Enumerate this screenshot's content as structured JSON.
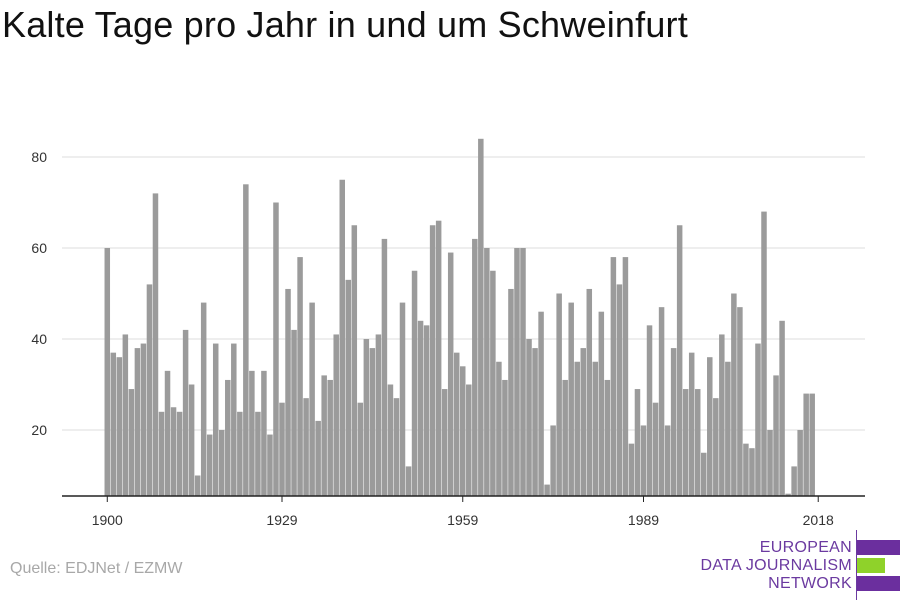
{
  "title": "Kalte Tage pro Jahr in und um Schweinfurt",
  "source": "Quelle: EDJNet / EZMW",
  "logo": {
    "lines": [
      "EUROPEAN",
      "DATA JOURNALISM",
      "NETWORK"
    ],
    "colors": {
      "purple": "#6b2f9e",
      "green": "#8fd22a"
    }
  },
  "chart_data": {
    "type": "bar",
    "title": "Kalte Tage pro Jahr in und um Schweinfurt",
    "xlabel": "",
    "ylabel": "",
    "x_start": 1899,
    "x_end": 2020,
    "xticks": [
      1900,
      1929,
      1959,
      1989,
      2018
    ],
    "yticks": [
      20,
      40,
      60,
      80
    ],
    "ylim": [
      5,
      88
    ],
    "grid": true,
    "bar_color": "#9b9b9b",
    "values": [
      5,
      60,
      37,
      36,
      41,
      29,
      38,
      39,
      52,
      72,
      24,
      33,
      25,
      24,
      42,
      30,
      10,
      48,
      19,
      39,
      20,
      31,
      39,
      24,
      74,
      33,
      24,
      33,
      19,
      70,
      26,
      51,
      42,
      58,
      27,
      48,
      22,
      32,
      31,
      41,
      75,
      53,
      65,
      26,
      40,
      38,
      41,
      62,
      30,
      27,
      48,
      12,
      55,
      44,
      43,
      65,
      66,
      29,
      59,
      37,
      34,
      30,
      62,
      84,
      60,
      55,
      35,
      31,
      51,
      60,
      60,
      40,
      38,
      46,
      8,
      21,
      50,
      31,
      48,
      35,
      38,
      51,
      35,
      46,
      31,
      58,
      52,
      58,
      17,
      29,
      21,
      43,
      26,
      47,
      21,
      38,
      65,
      29,
      37,
      29,
      15,
      36,
      27,
      41,
      35,
      50,
      47,
      17,
      16,
      39,
      68,
      20,
      32,
      44,
      6,
      12,
      20,
      28,
      28
    ]
  }
}
